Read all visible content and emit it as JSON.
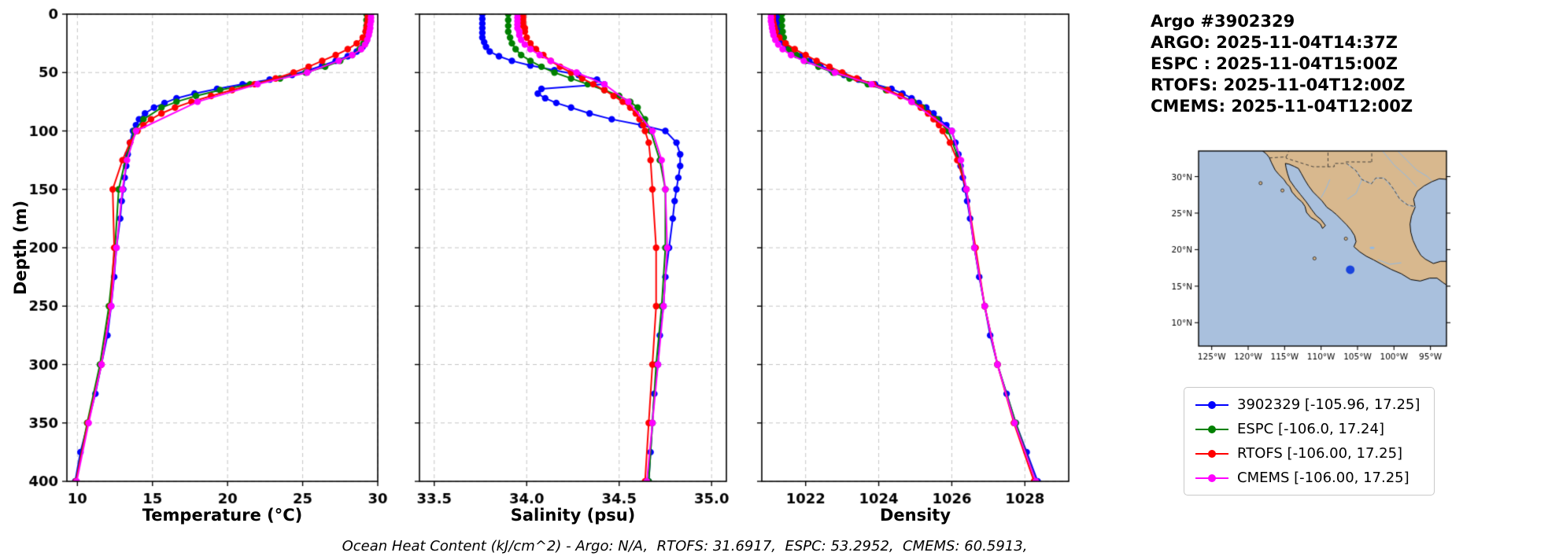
{
  "header": {
    "title": "Argo #3902329",
    "lines": [
      "ARGO: 2025-11-04T14:37Z",
      "ESPC : 2025-11-04T15:00Z",
      "RTOFS: 2025-11-04T12:00Z",
      "CMEMS: 2025-11-04T12:00Z"
    ]
  },
  "footer": {
    "ohc_note": "Ocean Heat Content (kJ/cm^2) - Argo: N/A,  RTOFS: 31.6917,  ESPC: 53.2952,  CMEMS: 60.5913,"
  },
  "depth_ticks": [
    {
      "v": 0,
      "label": "0"
    },
    {
      "v": 50,
      "label": "50"
    },
    {
      "v": 100,
      "label": "100"
    },
    {
      "v": 150,
      "label": "150"
    },
    {
      "v": 200,
      "label": "200"
    },
    {
      "v": 250,
      "label": "250"
    },
    {
      "v": 300,
      "label": "300"
    },
    {
      "v": 350,
      "label": "350"
    },
    {
      "v": 400,
      "label": "400"
    }
  ],
  "profiles": [
    {
      "name": "3902329",
      "color": "#0000ff",
      "depth": [
        0,
        4,
        8,
        12,
        16,
        20,
        24,
        28,
        32,
        36,
        40,
        44,
        48,
        52,
        56,
        60,
        64,
        68,
        72,
        76,
        80,
        85,
        90,
        95,
        100,
        110,
        120,
        130,
        140,
        150,
        160,
        175,
        200,
        225,
        250,
        275,
        300,
        325,
        350,
        375,
        400
      ],
      "temperature": [
        29.4,
        29.4,
        29.4,
        29.4,
        29.35,
        29.3,
        29.2,
        29.0,
        28.6,
        28.0,
        27.2,
        26.3,
        25.4,
        24.3,
        22.8,
        21.0,
        19.3,
        17.8,
        16.6,
        15.8,
        15.1,
        14.5,
        14.1,
        13.9,
        13.7,
        13.5,
        13.35,
        13.25,
        13.15,
        13.05,
        12.95,
        12.85,
        12.6,
        12.45,
        12.25,
        12.0,
        11.6,
        11.2,
        10.7,
        10.2,
        9.85
      ],
      "salinity": [
        33.76,
        33.76,
        33.76,
        33.76,
        33.76,
        33.76,
        33.77,
        33.78,
        33.8,
        33.85,
        33.92,
        34.02,
        34.15,
        34.28,
        34.38,
        34.42,
        34.08,
        34.06,
        34.1,
        34.16,
        34.24,
        34.34,
        34.46,
        34.62,
        34.75,
        34.81,
        34.83,
        34.83,
        34.82,
        34.81,
        34.8,
        34.79,
        34.77,
        34.75,
        34.74,
        34.72,
        34.71,
        34.69,
        34.68,
        34.67,
        34.66
      ],
      "density": [
        1021.25,
        1021.25,
        1021.25,
        1021.25,
        1021.27,
        1021.3,
        1021.35,
        1021.45,
        1021.6,
        1021.85,
        1022.1,
        1022.4,
        1022.7,
        1023.05,
        1023.45,
        1023.9,
        1024.35,
        1024.65,
        1024.9,
        1025.1,
        1025.3,
        1025.5,
        1025.65,
        1025.85,
        1026.0,
        1026.1,
        1026.18,
        1026.24,
        1026.3,
        1026.36,
        1026.42,
        1026.5,
        1026.62,
        1026.75,
        1026.9,
        1027.05,
        1027.25,
        1027.5,
        1027.75,
        1028.05,
        1028.35
      ]
    },
    {
      "name": "ESPC",
      "color": "#008000",
      "depth": [
        0,
        5,
        10,
        15,
        20,
        25,
        30,
        35,
        40,
        45,
        50,
        55,
        60,
        65,
        70,
        75,
        80,
        90,
        100,
        125,
        150,
        200,
        250,
        300,
        350,
        400
      ],
      "temperature": [
        29.25,
        29.25,
        29.25,
        29.2,
        29.15,
        29.05,
        28.8,
        28.3,
        27.5,
        26.5,
        25.2,
        23.5,
        21.5,
        19.5,
        17.9,
        16.6,
        15.6,
        14.4,
        13.8,
        13.2,
        12.75,
        12.5,
        12.1,
        11.5,
        10.65,
        9.9
      ],
      "salinity": [
        33.9,
        33.9,
        33.9,
        33.9,
        33.91,
        33.92,
        33.94,
        33.97,
        34.02,
        34.08,
        34.15,
        34.24,
        34.33,
        34.42,
        34.5,
        34.56,
        34.6,
        34.64,
        34.67,
        34.72,
        34.75,
        34.75,
        34.73,
        34.7,
        34.68,
        34.66
      ],
      "density": [
        1021.35,
        1021.35,
        1021.35,
        1021.37,
        1021.4,
        1021.45,
        1021.55,
        1021.75,
        1022.0,
        1022.35,
        1022.75,
        1023.2,
        1023.7,
        1024.2,
        1024.6,
        1024.95,
        1025.2,
        1025.6,
        1025.9,
        1026.2,
        1026.4,
        1026.62,
        1026.9,
        1027.25,
        1027.75,
        1028.3
      ]
    },
    {
      "name": "RTOFS",
      "color": "#ff0000",
      "depth": [
        0,
        2,
        4,
        6,
        8,
        10,
        12,
        15,
        20,
        25,
        30,
        35,
        40,
        45,
        50,
        55,
        60,
        65,
        70,
        75,
        80,
        85,
        90,
        95,
        100,
        110,
        125,
        150,
        200,
        250,
        300,
        350,
        400
      ],
      "temperature": [
        29.35,
        29.35,
        29.35,
        29.35,
        29.3,
        29.3,
        29.25,
        29.2,
        29.0,
        28.6,
        28.0,
        27.2,
        26.3,
        25.4,
        24.4,
        23.2,
        21.8,
        20.3,
        18.9,
        17.6,
        16.5,
        15.6,
        14.9,
        14.4,
        14.0,
        13.5,
        13.0,
        12.35,
        12.45,
        12.2,
        11.6,
        10.7,
        9.9
      ],
      "salinity": [
        33.98,
        33.98,
        33.98,
        33.98,
        33.98,
        33.98,
        33.99,
        33.99,
        34.0,
        34.02,
        34.05,
        34.09,
        34.13,
        34.18,
        34.24,
        34.3,
        34.36,
        34.42,
        34.47,
        34.52,
        34.56,
        34.59,
        34.61,
        34.63,
        34.64,
        34.66,
        34.67,
        34.68,
        34.7,
        34.7,
        34.68,
        34.66,
        34.64
      ],
      "density": [
        1021.1,
        1021.1,
        1021.1,
        1021.1,
        1021.12,
        1021.13,
        1021.15,
        1021.18,
        1021.28,
        1021.45,
        1021.7,
        1022.0,
        1022.3,
        1022.65,
        1023.0,
        1023.4,
        1023.85,
        1024.25,
        1024.6,
        1024.9,
        1025.15,
        1025.35,
        1025.5,
        1025.65,
        1025.75,
        1025.95,
        1026.15,
        1026.4,
        1026.65,
        1026.9,
        1027.25,
        1027.7,
        1028.25
      ]
    },
    {
      "name": "CMEMS",
      "color": "#ff00ff",
      "depth": [
        0,
        3,
        6,
        9,
        12,
        15,
        18,
        22,
        26,
        30,
        35,
        40,
        50,
        60,
        75,
        100,
        125,
        150,
        200,
        250,
        300,
        350,
        400
      ],
      "temperature": [
        29.55,
        29.55,
        29.55,
        29.5,
        29.5,
        29.45,
        29.4,
        29.3,
        29.15,
        28.9,
        28.3,
        27.4,
        25.3,
        22.0,
        18.0,
        13.9,
        13.3,
        13.0,
        12.6,
        12.25,
        11.6,
        10.75,
        9.95
      ],
      "salinity": [
        33.95,
        33.95,
        33.95,
        33.95,
        33.95,
        33.96,
        33.96,
        33.97,
        33.99,
        34.02,
        34.07,
        34.13,
        34.27,
        34.42,
        34.55,
        34.68,
        34.73,
        34.75,
        34.76,
        34.74,
        34.71,
        34.68,
        34.65
      ],
      "density": [
        1021.05,
        1021.05,
        1021.05,
        1021.07,
        1021.08,
        1021.1,
        1021.12,
        1021.17,
        1021.25,
        1021.37,
        1021.6,
        1021.95,
        1022.8,
        1023.8,
        1024.9,
        1026.0,
        1026.25,
        1026.4,
        1026.62,
        1026.9,
        1027.25,
        1027.72,
        1028.3
      ]
    }
  ],
  "chart_data": [
    {
      "type": "line",
      "title": "",
      "xlabel": "Temperature (°C)",
      "ylabel": "Depth (m)",
      "value_key": "temperature",
      "grid": true,
      "xlim": [
        9.3,
        30.0
      ],
      "ylim": [
        0,
        400
      ],
      "xticks": [
        {
          "v": 10,
          "label": "10"
        },
        {
          "v": 15,
          "label": "15"
        },
        {
          "v": 20,
          "label": "20"
        },
        {
          "v": 25,
          "label": "25"
        },
        {
          "v": 30,
          "label": "30"
        }
      ]
    },
    {
      "type": "line",
      "title": "",
      "xlabel": "Salinity (psu)",
      "ylabel": "Depth (m)",
      "value_key": "salinity",
      "grid": true,
      "xlim": [
        33.42,
        35.08
      ],
      "ylim": [
        0,
        400
      ],
      "xticks": [
        {
          "v": 33.5,
          "label": "33.5"
        },
        {
          "v": 34.0,
          "label": "34.0"
        },
        {
          "v": 34.5,
          "label": "34.5"
        },
        {
          "v": 35.0,
          "label": "35.0"
        }
      ]
    },
    {
      "type": "line",
      "title": "",
      "xlabel": "Density",
      "ylabel": "Depth (m)",
      "value_key": "density",
      "grid": true,
      "xlim": [
        1020.8,
        1029.2
      ],
      "ylim": [
        0,
        400
      ],
      "xticks": [
        {
          "v": 1022,
          "label": "1022"
        },
        {
          "v": 1024,
          "label": "1024"
        },
        {
          "v": 1026,
          "label": "1026"
        },
        {
          "v": 1028,
          "label": "1028"
        }
      ]
    }
  ],
  "map": {
    "lon_range": [
      -126.8,
      -92.8
    ],
    "lat_range": [
      6.8,
      33.5
    ],
    "colors": {
      "ocean": "#a9c0dd",
      "land": "#d8b88e",
      "coast": "#000000",
      "river": "#90b9e6",
      "border": "#333333"
    },
    "lon_ticks": [
      {
        "v": -125,
        "label": "125°W"
      },
      {
        "v": -120,
        "label": "120°W"
      },
      {
        "v": -115,
        "label": "115°W"
      },
      {
        "v": -110,
        "label": "110°W"
      },
      {
        "v": -105,
        "label": "105°W"
      },
      {
        "v": -100,
        "label": "100°W"
      },
      {
        "v": -95,
        "label": "95°W"
      }
    ],
    "lat_ticks": [
      {
        "v": 10,
        "label": "10°N"
      },
      {
        "v": 15,
        "label": "15°N"
      },
      {
        "v": 20,
        "label": "20°N"
      },
      {
        "v": 25,
        "label": "25°N"
      },
      {
        "v": 30,
        "label": "30°N"
      }
    ],
    "marker": {
      "lon": -106.0,
      "lat": 17.25,
      "color": "#1a44dd"
    },
    "land": [
      [
        [
          -118.4,
          33.8
        ],
        [
          -117.5,
          33.1
        ],
        [
          -117.1,
          32.6
        ],
        [
          -116.8,
          31.9
        ],
        [
          -116.3,
          30.9
        ],
        [
          -115.8,
          30.3
        ],
        [
          -115.1,
          29.6
        ],
        [
          -114.7,
          29.0
        ],
        [
          -114.3,
          28.6
        ],
        [
          -114.0,
          27.9
        ],
        [
          -113.3,
          27.1
        ],
        [
          -112.6,
          26.5
        ],
        [
          -112.2,
          25.9
        ],
        [
          -112.0,
          25.1
        ],
        [
          -111.4,
          24.4
        ],
        [
          -110.7,
          24.0
        ],
        [
          -110.1,
          23.5
        ],
        [
          -109.8,
          22.9
        ],
        [
          -109.4,
          23.3
        ],
        [
          -110.0,
          24.1
        ],
        [
          -110.7,
          24.7
        ],
        [
          -111.3,
          25.5
        ],
        [
          -112.0,
          26.5
        ],
        [
          -112.8,
          27.5
        ],
        [
          -113.6,
          28.5
        ],
        [
          -114.3,
          29.5
        ],
        [
          -114.6,
          30.4
        ],
        [
          -114.8,
          31.2
        ],
        [
          -114.9,
          31.8
        ],
        [
          -114.4,
          31.7
        ],
        [
          -113.7,
          31.4
        ],
        [
          -113.1,
          31.1
        ],
        [
          -112.7,
          30.4
        ],
        [
          -112.2,
          29.5
        ],
        [
          -111.7,
          28.7
        ],
        [
          -111.1,
          27.9
        ],
        [
          -110.5,
          27.3
        ],
        [
          -109.9,
          26.7
        ],
        [
          -109.2,
          25.8
        ],
        [
          -108.5,
          25.3
        ],
        [
          -107.9,
          24.8
        ],
        [
          -107.2,
          24.1
        ],
        [
          -106.5,
          23.4
        ],
        [
          -105.9,
          22.7
        ],
        [
          -105.4,
          21.9
        ],
        [
          -105.2,
          21.1
        ],
        [
          -105.5,
          20.4
        ],
        [
          -104.7,
          19.7
        ],
        [
          -103.8,
          19.1
        ],
        [
          -102.8,
          18.6
        ],
        [
          -101.7,
          18.0
        ],
        [
          -100.4,
          17.3
        ],
        [
          -99.0,
          16.7
        ],
        [
          -97.7,
          15.9
        ],
        [
          -96.4,
          15.7
        ],
        [
          -95.1,
          16.1
        ],
        [
          -94.1,
          16.1
        ],
        [
          -93.3,
          15.5
        ],
        [
          -92.4,
          14.9
        ],
        [
          -92.4,
          18.4
        ],
        [
          -93.6,
          18.4
        ],
        [
          -94.6,
          18.1
        ],
        [
          -95.7,
          18.7
        ],
        [
          -96.3,
          19.2
        ],
        [
          -96.9,
          20.2
        ],
        [
          -97.4,
          21.3
        ],
        [
          -97.7,
          22.4
        ],
        [
          -97.8,
          23.5
        ],
        [
          -97.6,
          24.6
        ],
        [
          -97.1,
          25.8
        ],
        [
          -97.3,
          26.9
        ],
        [
          -96.8,
          28.0
        ],
        [
          -95.9,
          28.7
        ],
        [
          -94.8,
          29.3
        ],
        [
          -93.8,
          29.7
        ],
        [
          -92.4,
          29.6
        ],
        [
          -92.4,
          33.8
        ]
      ]
    ],
    "islands": [
      [
        -118.3,
        29.1
      ],
      [
        -115.3,
        28.1
      ],
      [
        -106.6,
        21.5
      ],
      [
        -110.9,
        18.8
      ]
    ],
    "borders": [
      [
        [
          -117.1,
          32.55
        ],
        [
          -114.8,
          32.7
        ],
        [
          -114.75,
          32.5
        ],
        [
          -111.1,
          31.35
        ],
        [
          -108.2,
          31.35
        ],
        [
          -108.2,
          31.8
        ],
        [
          -106.5,
          31.8
        ],
        [
          -106.1,
          31.5
        ],
        [
          -105.2,
          30.8
        ],
        [
          -104.7,
          30.0
        ],
        [
          -104.4,
          29.6
        ],
        [
          -103.1,
          29.0
        ],
        [
          -102.5,
          29.8
        ],
        [
          -101.4,
          29.8
        ],
        [
          -100.7,
          29.2
        ],
        [
          -100.0,
          28.2
        ],
        [
          -99.2,
          26.9
        ],
        [
          -98.1,
          26.1
        ],
        [
          -97.1,
          25.9
        ]
      ],
      [
        [
          -114.8,
          32.7
        ],
        [
          -114.5,
          33.2
        ],
        [
          -114.35,
          33.8
        ]
      ],
      [
        [
          -109.05,
          31.35
        ],
        [
          -109.05,
          33.8
        ]
      ],
      [
        [
          -103.05,
          32.0
        ],
        [
          -103.05,
          33.8
        ]
      ],
      [
        [
          -106.6,
          32.0
        ],
        [
          -103.05,
          32.0
        ]
      ]
    ],
    "rivers": [
      [
        [
          -106.5,
          31.8
        ],
        [
          -105.2,
          30.8
        ],
        [
          -104.4,
          29.6
        ],
        [
          -103.1,
          29.0
        ],
        [
          -102.5,
          29.8
        ],
        [
          -101.4,
          29.8
        ],
        [
          -100.0,
          28.2
        ],
        [
          -99.2,
          26.9
        ],
        [
          -98.1,
          26.1
        ],
        [
          -97.1,
          25.9
        ]
      ],
      [
        [
          -99.8,
          33.8
        ],
        [
          -98.2,
          32.2
        ],
        [
          -96.9,
          30.9
        ],
        [
          -95.4,
          30.0
        ],
        [
          -94.8,
          29.4
        ]
      ],
      [
        [
          -101.8,
          33.8
        ],
        [
          -100.0,
          31.6
        ],
        [
          -98.1,
          29.9
        ],
        [
          -96.9,
          28.6
        ]
      ],
      [
        [
          -106.4,
          26.9
        ],
        [
          -105.2,
          27.7
        ],
        [
          -104.4,
          29.6
        ]
      ],
      [
        [
          -102.2,
          18.6
        ],
        [
          -100.6,
          18.0
        ],
        [
          -99.0,
          18.2
        ]
      ],
      [
        [
          -110.0,
          27.1
        ],
        [
          -109.3,
          28.4
        ],
        [
          -108.8,
          29.6
        ]
      ]
    ],
    "lakes": [
      {
        "lon": -103.0,
        "lat": 20.25,
        "rx": 3,
        "ry": 1.5
      }
    ]
  },
  "legend": {
    "entries": [
      {
        "label": "3902329 [-105.96, 17.25]",
        "color": "#0000ff"
      },
      {
        "label": "ESPC [-106.0, 17.24]",
        "color": "#008000"
      },
      {
        "label": "RTOFS [-106.00, 17.25]",
        "color": "#ff0000"
      },
      {
        "label": "CMEMS [-106.00, 17.25]",
        "color": "#ff00ff"
      }
    ]
  }
}
